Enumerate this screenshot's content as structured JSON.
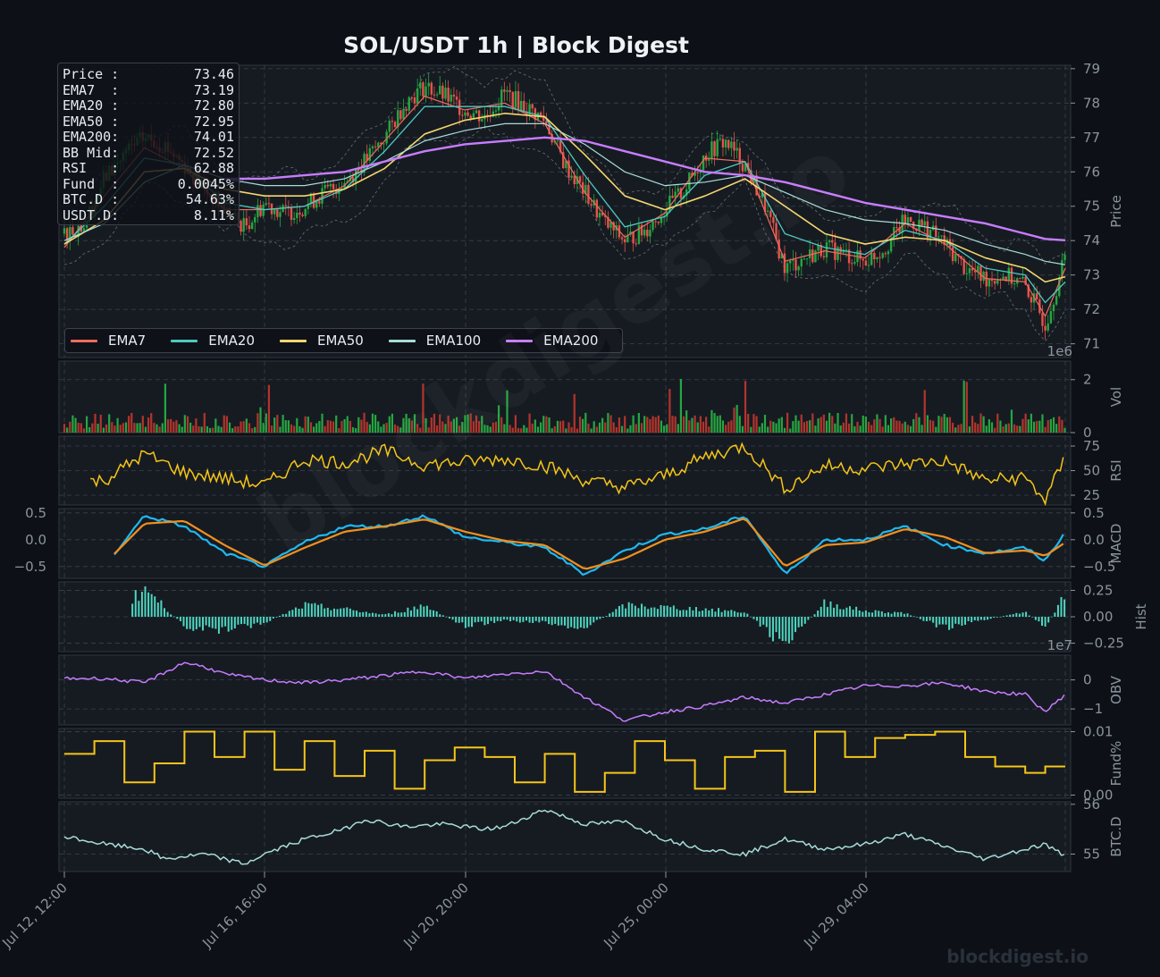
{
  "title": "SOL/USDT  1h  |  Block Digest",
  "watermark": "blockdigest.io",
  "footer_mark": "blockdigest.io",
  "info_box": [
    {
      "label": "Price :",
      "value": "73.46"
    },
    {
      "label": "EMA7  :",
      "value": "73.19"
    },
    {
      "label": "EMA20 :",
      "value": "72.80"
    },
    {
      "label": "EMA50 :",
      "value": "72.95"
    },
    {
      "label": "EMA200:",
      "value": "74.01"
    },
    {
      "label": "BB Mid:",
      "value": "72.52"
    },
    {
      "label": "RSI   :",
      "value": "62.88"
    },
    {
      "label": "Fund  :",
      "value": "0.0045%"
    },
    {
      "label": "BTC.D :",
      "value": "54.63%"
    },
    {
      "label": "USDT.D:",
      "value": "8.11%"
    }
  ],
  "legend": [
    {
      "name": "EMA7",
      "color": "#ef6b5e"
    },
    {
      "name": "EMA20",
      "color": "#4ec9c0"
    },
    {
      "name": "EMA50",
      "color": "#f5d76e"
    },
    {
      "name": "EMA100",
      "color": "#a8dcd9"
    },
    {
      "name": "EMA200",
      "color": "#c77dff"
    }
  ],
  "colors": {
    "up": "#26a641",
    "down": "#e5534b",
    "rsi": "#f5c518",
    "macd": "#1fb8f0",
    "signal": "#f0901e",
    "hist": "#4ed6c0",
    "obv": "#c77dff",
    "funding": "#f5c518",
    "btcd": "#a8dcd9",
    "bb": "#8b949e",
    "grid": "#3a414c",
    "panel": "#161b22"
  },
  "chart_data": {
    "type": "line",
    "x_ticks": [
      "Jul 12, 12:00",
      "Jul 16, 16:00",
      "Jul 20, 20:00",
      "Jul 25, 00:00",
      "Jul 29, 04:00"
    ],
    "panels": [
      {
        "name": "price",
        "ylabel": "Price",
        "ylim": [
          70.6,
          79.1
        ],
        "yticks": [
          "71",
          "72",
          "73",
          "74",
          "75",
          "76",
          "77",
          "78",
          "79"
        ],
        "series": [
          {
            "name": "Price",
            "x": [
              0,
              2,
              4,
              6,
              8,
              10,
              12,
              14,
              16,
              18,
              20,
              22,
              24,
              26,
              28,
              30,
              32,
              34,
              36,
              38,
              40,
              42,
              44,
              46,
              48,
              50,
              52,
              54,
              56,
              58,
              60,
              62,
              64,
              66,
              68,
              70,
              72,
              74,
              76,
              78,
              80,
              82,
              84,
              86,
              88,
              90,
              92,
              94,
              96,
              98,
              100
            ],
            "values": [
              74.2,
              74.5,
              75.8,
              76.5,
              77.0,
              76.8,
              76.2,
              75.5,
              74.9,
              74.4,
              75.1,
              74.8,
              75.0,
              75.4,
              75.7,
              76.3,
              77.0,
              78.0,
              78.5,
              78.2,
              77.8,
              77.6,
              78.3,
              77.9,
              77.5,
              76.2,
              75.4,
              74.5,
              74.0,
              74.3,
              74.9,
              75.5,
              76.5,
              76.9,
              76.2,
              75.0,
              73.2,
              73.5,
              73.8,
              73.6,
              73.4,
              73.8,
              74.6,
              74.4,
              73.9,
              73.2,
              72.9,
              73.0,
              72.7,
              71.6,
              73.5
            ]
          },
          {
            "name": "EMA7",
            "x": [
              0,
              4,
              8,
              12,
              16,
              20,
              24,
              28,
              32,
              36,
              40,
              44,
              48,
              52,
              56,
              60,
              64,
              68,
              72,
              76,
              80,
              84,
              88,
              92,
              96,
              98,
              100
            ],
            "values": [
              73.8,
              75.3,
              76.7,
              76.1,
              74.9,
              74.9,
              75.0,
              75.6,
              76.9,
              78.2,
              77.8,
              78.0,
              77.4,
              75.4,
              74.1,
              74.8,
              76.4,
              76.3,
              73.4,
              73.7,
              73.5,
              74.5,
              73.9,
              72.9,
              72.8,
              71.8,
              73.2
            ]
          },
          {
            "name": "EMA20",
            "x": [
              0,
              4,
              8,
              12,
              16,
              20,
              24,
              28,
              32,
              36,
              40,
              44,
              48,
              52,
              56,
              60,
              64,
              68,
              72,
              76,
              80,
              84,
              88,
              92,
              96,
              98,
              100
            ],
            "values": [
              73.9,
              75.0,
              76.4,
              76.2,
              75.1,
              74.9,
              75.0,
              75.5,
              76.6,
              77.9,
              77.9,
              77.9,
              77.6,
              75.9,
              74.4,
              74.7,
              75.9,
              76.3,
              74.2,
              73.8,
              73.6,
              74.3,
              74.0,
              73.2,
              73.0,
              72.2,
              72.8
            ]
          },
          {
            "name": "EMA50",
            "x": [
              0,
              4,
              8,
              12,
              16,
              20,
              24,
              28,
              32,
              36,
              40,
              44,
              48,
              52,
              56,
              60,
              64,
              68,
              72,
              76,
              80,
              84,
              88,
              92,
              96,
              98,
              100
            ],
            "values": [
              73.9,
              74.6,
              76.0,
              76.1,
              75.5,
              75.3,
              75.3,
              75.5,
              76.1,
              77.1,
              77.5,
              77.7,
              77.6,
              76.5,
              75.3,
              74.9,
              75.3,
              75.8,
              75.0,
              74.2,
              73.9,
              74.1,
              74.0,
              73.5,
              73.2,
              72.8,
              72.95
            ]
          },
          {
            "name": "EMA100",
            "x": [
              0,
              4,
              8,
              12,
              16,
              20,
              24,
              28,
              32,
              36,
              40,
              44,
              48,
              52,
              56,
              60,
              64,
              68,
              72,
              76,
              80,
              84,
              88,
              92,
              96,
              98,
              100
            ],
            "values": [
              74.0,
              74.5,
              75.7,
              76.2,
              75.8,
              75.6,
              75.6,
              75.8,
              76.3,
              76.9,
              77.2,
              77.4,
              77.4,
              76.8,
              76.0,
              75.6,
              75.7,
              75.9,
              75.4,
              74.9,
              74.6,
              74.5,
              74.3,
              73.9,
              73.6,
              73.4,
              73.3
            ]
          },
          {
            "name": "EMA200",
            "x": [
              16,
              20,
              24,
              28,
              32,
              36,
              40,
              44,
              48,
              52,
              56,
              60,
              64,
              68,
              72,
              76,
              80,
              84,
              88,
              92,
              96,
              98,
              100
            ],
            "values": [
              75.8,
              75.8,
              75.9,
              76.0,
              76.3,
              76.6,
              76.8,
              76.9,
              77.0,
              76.9,
              76.6,
              76.3,
              76.0,
              75.9,
              75.7,
              75.4,
              75.1,
              74.9,
              74.7,
              74.5,
              74.2,
              74.05,
              74.01
            ]
          }
        ]
      },
      {
        "name": "vol",
        "ylabel": "Vol",
        "multiplier": "1e6",
        "ylim": [
          0,
          2.7
        ],
        "yticks": [
          "0",
          "2"
        ]
      },
      {
        "name": "rsi",
        "ylabel": "RSI",
        "ylim": [
          15,
          85
        ],
        "yticks": [
          "25",
          "50",
          "75"
        ],
        "series": [
          {
            "name": "RSI",
            "x": [
              0,
              4,
              8,
              12,
              16,
              20,
              24,
              28,
              32,
              36,
              40,
              44,
              48,
              52,
              56,
              60,
              64,
              68,
              72,
              76,
              80,
              84,
              88,
              92,
              96,
              98,
              100
            ],
            "values": [
              38,
              40,
              67,
              48,
              42,
              35,
              62,
              58,
              70,
              56,
              59,
              62,
              55,
              40,
              33,
              45,
              64,
              75,
              32,
              55,
              52,
              57,
              60,
              40,
              43,
              20,
              63
            ]
          }
        ]
      },
      {
        "name": "macd",
        "ylabel": "MACD",
        "ylim": [
          -0.72,
          0.58
        ],
        "yticks": [
          "-0.5",
          "0.0",
          "0.5"
        ],
        "series": [
          {
            "name": "MACD",
            "x": [
              0,
              4,
              8,
              12,
              16,
              20,
              24,
              28,
              32,
              36,
              40,
              44,
              48,
              52,
              56,
              60,
              64,
              68,
              72,
              76,
              80,
              84,
              88,
              92,
              96,
              98,
              100
            ],
            "values": [
              -0.28,
              -0.5,
              0.45,
              0.25,
              -0.25,
              -0.5,
              -0.05,
              0.25,
              0.25,
              0.45,
              0.05,
              -0.05,
              -0.15,
              -0.65,
              -0.2,
              0.1,
              0.2,
              0.45,
              -0.65,
              0.0,
              0.0,
              0.25,
              -0.1,
              -0.25,
              -0.15,
              -0.4,
              0.15
            ]
          },
          {
            "name": "Signal",
            "x": [
              0,
              4,
              8,
              12,
              16,
              20,
              24,
              28,
              32,
              36,
              40,
              44,
              48,
              52,
              56,
              60,
              64,
              68,
              72,
              76,
              80,
              84,
              88,
              92,
              96,
              98,
              100
            ],
            "values": [
              -0.3,
              -0.45,
              0.3,
              0.35,
              -0.1,
              -0.48,
              -0.15,
              0.15,
              0.25,
              0.38,
              0.15,
              -0.02,
              -0.1,
              -0.55,
              -0.35,
              0.0,
              0.15,
              0.4,
              -0.5,
              -0.1,
              -0.05,
              0.2,
              0.05,
              -0.25,
              -0.2,
              -0.3,
              -0.05
            ]
          }
        ]
      },
      {
        "name": "hist",
        "ylabel": "Hist",
        "ylim": [
          -0.33,
          0.33
        ],
        "yticks": [
          "-0.25",
          "0.00",
          "0.25"
        ],
        "series": [
          {
            "name": "Hist",
            "x": [
              0,
              4,
              8,
              12,
              16,
              20,
              24,
              28,
              32,
              36,
              40,
              44,
              48,
              52,
              56,
              60,
              64,
              68,
              72,
              76,
              80,
              84,
              88,
              92,
              96,
              98,
              100
            ],
            "values": [
              -0.02,
              -0.08,
              0.3,
              -0.1,
              -0.15,
              -0.06,
              0.12,
              0.08,
              0.02,
              0.12,
              -0.1,
              -0.04,
              -0.06,
              -0.12,
              0.12,
              0.1,
              0.08,
              0.05,
              -0.3,
              0.15,
              0.06,
              0.04,
              -0.12,
              -0.03,
              0.05,
              -0.1,
              0.22
            ]
          }
        ]
      },
      {
        "name": "obv",
        "ylabel": "OBV",
        "multiplier": "1e7",
        "ylim": [
          -1.55,
          0.85
        ],
        "yticks": [
          "-1",
          "0"
        ],
        "series": [
          {
            "name": "OBV",
            "x": [
              0,
              4,
              8,
              12,
              14,
              16,
              20,
              24,
              28,
              32,
              36,
              40,
              44,
              48,
              52,
              56,
              60,
              64,
              68,
              72,
              76,
              80,
              84,
              88,
              92,
              96,
              98,
              100
            ],
            "values": [
              0.05,
              0.05,
              -0.1,
              0.6,
              0.45,
              0.2,
              0.0,
              -0.1,
              0.0,
              0.15,
              0.3,
              0.05,
              0.2,
              0.3,
              -0.6,
              -1.4,
              -1.1,
              -0.9,
              -0.6,
              -0.8,
              -0.5,
              -0.2,
              -0.2,
              -0.1,
              -0.4,
              -0.5,
              -1.1,
              -0.5
            ]
          }
        ]
      },
      {
        "name": "fund",
        "ylabel": "Fund%",
        "ylim": [
          -0.0005,
          0.0105
        ],
        "yticks": [
          "0.00",
          "0.01"
        ],
        "series": [
          {
            "name": "Funding",
            "x": [
              0,
              3,
              6,
              9,
              12,
              15,
              18,
              21,
              24,
              27,
              30,
              33,
              36,
              39,
              42,
              45,
              48,
              51,
              54,
              57,
              60,
              63,
              66,
              69,
              72,
              75,
              78,
              81,
              84,
              87,
              90,
              93,
              96,
              98,
              100
            ],
            "values": [
              0.0065,
              0.0085,
              0.002,
              0.005,
              0.01,
              0.006,
              0.01,
              0.004,
              0.0085,
              0.003,
              0.007,
              0.001,
              0.0055,
              0.0075,
              0.006,
              0.002,
              0.0065,
              0.0005,
              0.0035,
              0.0085,
              0.0055,
              0.001,
              0.006,
              0.007,
              0.0005,
              0.01,
              0.006,
              0.009,
              0.0095,
              0.01,
              0.006,
              0.0045,
              0.0035,
              0.0045,
              0.0045
            ]
          }
        ]
      },
      {
        "name": "btcd",
        "ylabel": "BTC.D",
        "ylim": [
          54.65,
          56.05
        ],
        "yticks": [
          "55",
          "56"
        ],
        "series": [
          {
            "name": "BTC.D",
            "x": [
              0,
              4,
              8,
              10,
              14,
              18,
              20,
              24,
              28,
              30,
              34,
              38,
              42,
              44,
              48,
              52,
              56,
              60,
              64,
              68,
              72,
              76,
              80,
              84,
              88,
              92,
              96,
              98,
              100
            ],
            "values": [
              55.35,
              55.2,
              55.1,
              54.9,
              55.0,
              54.8,
              55.0,
              55.3,
              55.5,
              55.7,
              55.55,
              55.6,
              55.5,
              55.55,
              55.9,
              55.6,
              55.65,
              55.3,
              55.1,
              55.0,
              55.3,
              55.1,
              55.2,
              55.4,
              55.15,
              54.9,
              55.1,
              55.2,
              54.95
            ]
          }
        ]
      }
    ]
  }
}
